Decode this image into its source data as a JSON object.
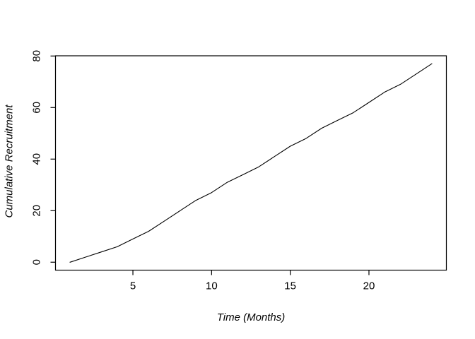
{
  "chart_data": {
    "type": "line",
    "title": "",
    "xlabel": "Time (Months)",
    "ylabel": "Cumulative Recruitment",
    "x": [
      1,
      2,
      3,
      4,
      5,
      6,
      7,
      8,
      9,
      10,
      11,
      12,
      13,
      14,
      15,
      16,
      17,
      18,
      19,
      20,
      21,
      22,
      23,
      24
    ],
    "series": [
      {
        "name": "cumulative-recruitment",
        "values": [
          0,
          2,
          4,
          6,
          9,
          12,
          16,
          20,
          24,
          27,
          31,
          34,
          37,
          41,
          45,
          48,
          52,
          55,
          58,
          62,
          66,
          69,
          73,
          77
        ]
      }
    ],
    "x_ticks": [
      5,
      10,
      15,
      20
    ],
    "y_ticks": [
      0,
      20,
      40,
      60,
      80
    ],
    "xlim": [
      0.08,
      24.92
    ],
    "ylim": [
      -3.08,
      80.08
    ],
    "grid": false,
    "legend": "none",
    "line_color": "#000000",
    "axis_color": "#000000",
    "background_color": "#ffffff"
  }
}
